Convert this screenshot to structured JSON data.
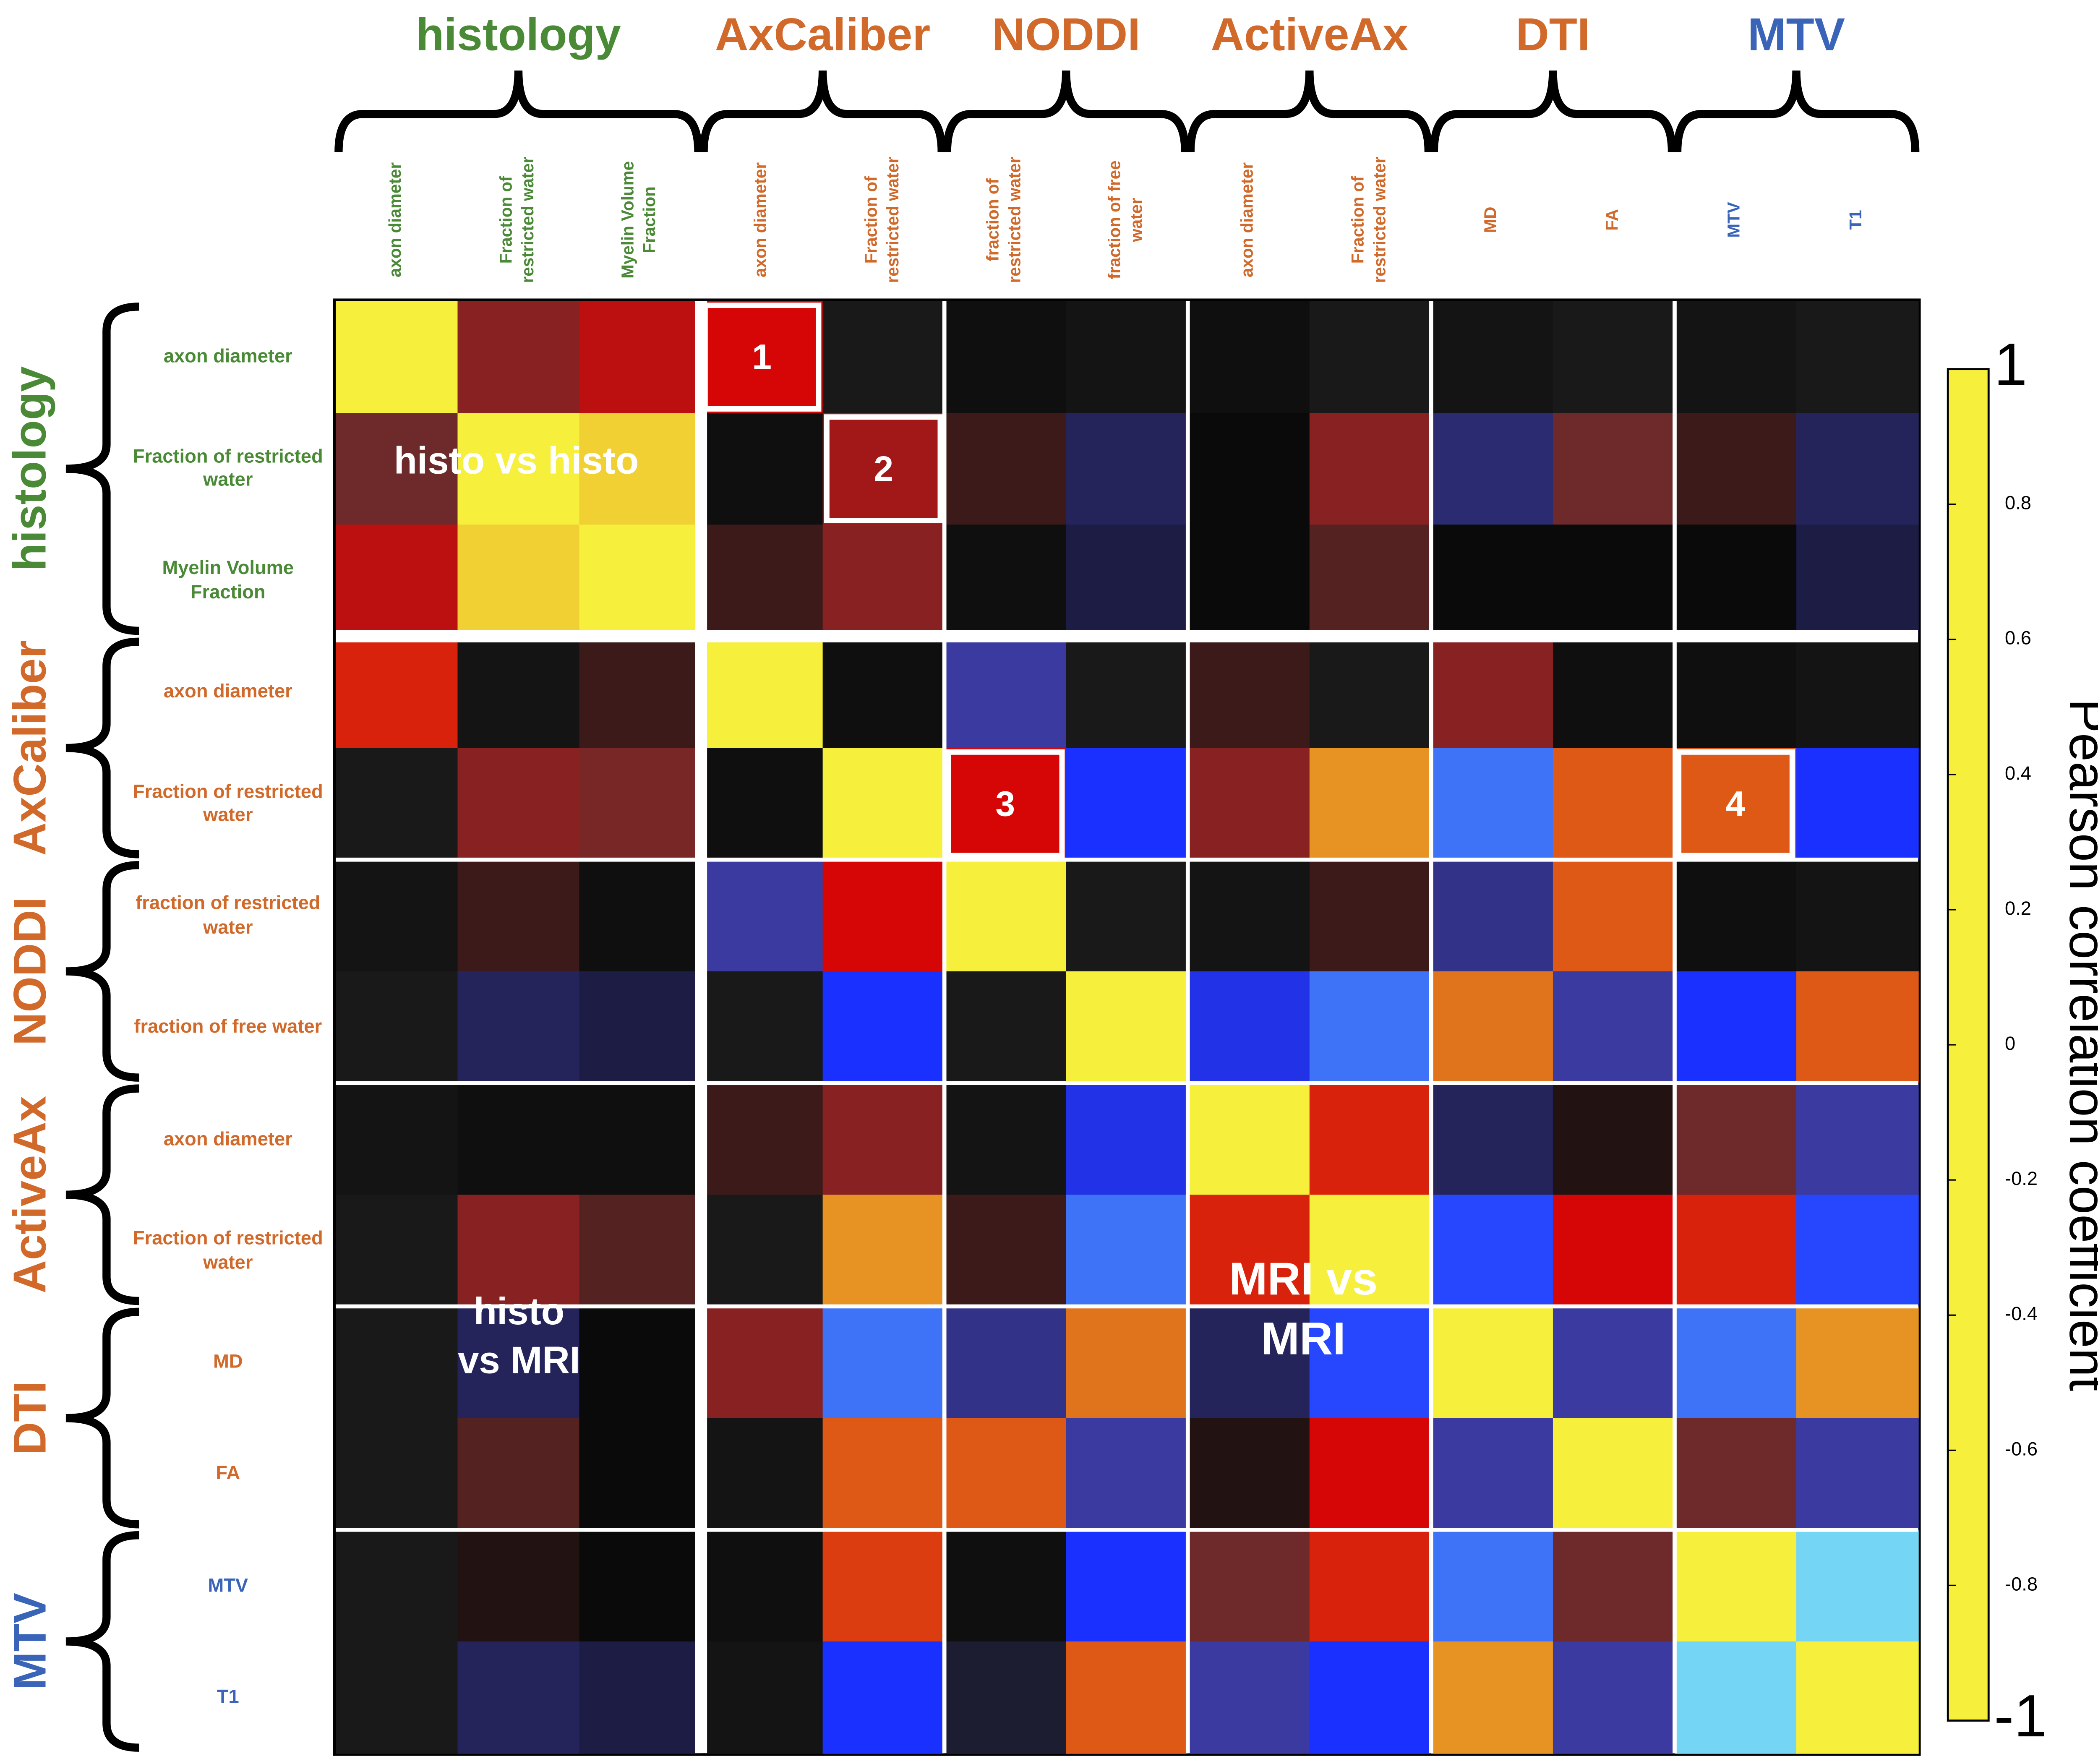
{
  "chart_data": {
    "type": "heatmap",
    "groups": [
      {
        "name": "histology",
        "color": "#4a8a36",
        "variables": [
          "axon diameter",
          "Fraction of restricted water",
          "Myelin Volume Fraction"
        ]
      },
      {
        "name": "AxCaliber",
        "color": "#d0692a",
        "variables": [
          "axon diameter",
          "Fraction of restricted water"
        ]
      },
      {
        "name": "NODDI",
        "color": "#d0692a",
        "variables": [
          "fraction of restricted water",
          "fraction of free water"
        ]
      },
      {
        "name": "ActiveAx",
        "color": "#d0692a",
        "variables": [
          "axon diameter",
          "Fraction of restricted water"
        ]
      },
      {
        "name": "DTI",
        "color": "#d0692a",
        "variables": [
          "MD",
          "FA"
        ]
      },
      {
        "name": "MTV",
        "color": "#3a64b8",
        "variables": [
          "MTV",
          "T1"
        ]
      }
    ],
    "values": [
      [
        1,
        0.45,
        0.55,
        0.6,
        0.05,
        0.15,
        0.1,
        0.15,
        0.05,
        0.1,
        0.05,
        0.1,
        0.05
      ],
      [
        0.4,
        1,
        0.95,
        0.15,
        0.5,
        0.3,
        -0.25,
        0.2,
        0.45,
        -0.3,
        0.4,
        0.3,
        -0.25
      ],
      [
        0.55,
        0.95,
        1,
        0.3,
        0.45,
        0.15,
        -0.2,
        0.2,
        0.35,
        0.2,
        0.2,
        0.2,
        -0.2
      ],
      [
        0.65,
        0.1,
        0.3,
        1,
        0.15,
        -0.4,
        0.05,
        0.3,
        0.05,
        0.45,
        0.15,
        0.15,
        0.1
      ],
      [
        0.05,
        0.45,
        0.42,
        0.15,
        1,
        0.6,
        -0.6,
        0.45,
        0.85,
        -0.75,
        0.75,
        0.75,
        -0.6
      ],
      [
        0.1,
        0.3,
        0.15,
        -0.4,
        0.6,
        1,
        0.05,
        0.1,
        0.3,
        -0.35,
        0.75,
        0.15,
        0.1
      ],
      [
        0.05,
        -0.25,
        -0.2,
        0.05,
        -0.6,
        0.05,
        1,
        -0.55,
        -0.75,
        0.8,
        -0.4,
        -0.6,
        0.75
      ],
      [
        0.1,
        0.15,
        0.15,
        0.3,
        0.45,
        0.1,
        -0.55,
        1,
        0.65,
        -0.25,
        0.25,
        0.4,
        -0.4
      ],
      [
        0.05,
        0.45,
        0.35,
        0.05,
        0.85,
        0.3,
        -0.75,
        0.65,
        1,
        -0.65,
        0.6,
        0.65,
        -0.65
      ],
      [
        0.05,
        -0.25,
        0.2,
        0.45,
        -0.75,
        -0.35,
        0.8,
        -0.25,
        -0.65,
        1,
        -0.4,
        -0.75,
        0.85
      ],
      [
        0.05,
        0.35,
        0.2,
        0.1,
        0.75,
        0.75,
        -0.4,
        0.25,
        0.6,
        -0.4,
        1,
        0.4,
        -0.4
      ],
      [
        0.05,
        0.25,
        0.2,
        0.15,
        0.7,
        0.15,
        -0.6,
        0.4,
        0.65,
        -0.75,
        0.4,
        1,
        -0.95
      ],
      [
        0.05,
        -0.25,
        -0.2,
        0.1,
        -0.6,
        -0.1,
        0.75,
        -0.4,
        -0.6,
        0.85,
        -0.4,
        -0.95,
        1
      ]
    ],
    "colorbar": {
      "label": "Pearson correlation coefficient",
      "clim": [
        -1,
        1
      ],
      "ticks": [
        1,
        0.8,
        0.6,
        0.4,
        0.2,
        0,
        -0.2,
        -0.4,
        -0.6,
        -0.8,
        -1
      ],
      "colors": [
        "#f6ef3c",
        "#e0741c",
        "#d60606",
        "#6e2a2a",
        "#0a0a0a",
        "#1e1e1e",
        "#1c1c44",
        "#3a3aa0",
        "#1a30ff",
        "#4a8af5",
        "#84eef5"
      ]
    },
    "annotations": [
      "histo vs histo",
      "histo vs MRI",
      "MRI vs MRI"
    ],
    "highlight_labels": [
      "1",
      "2",
      "3",
      "4"
    ]
  }
}
